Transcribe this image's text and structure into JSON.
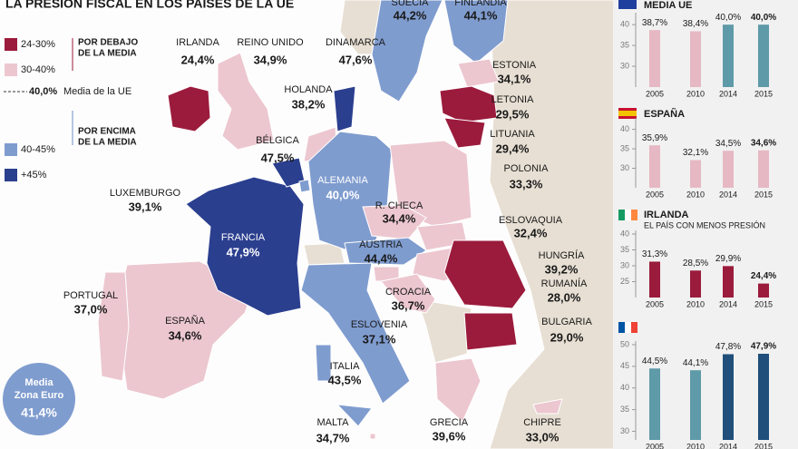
{
  "title": "LA PRESIÓN FISCAL EN LOS PAÍSES DE LA UE",
  "legend": {
    "items": [
      {
        "range": "24-30%",
        "color": "#9b1b3c"
      },
      {
        "range": "30-40%",
        "color": "#ecc7d0"
      },
      {
        "range": "40-45%",
        "color": "#7f9ccf"
      },
      {
        "range": "+45%",
        "color": "#2b3f8f"
      }
    ],
    "below": [
      "POR DEBAJO",
      "DE LA MEDIA"
    ],
    "above": [
      "POR ENCIMA",
      "DE LA MEDIA"
    ],
    "eu_mean_value": "40,0%",
    "eu_mean_text": "Media de la UE"
  },
  "countries": [
    {
      "name": "IRLANDA",
      "value": "24,4%"
    },
    {
      "name": "REINO UNIDO",
      "value": "34,9%"
    },
    {
      "name": "DINAMARCA",
      "value": "47,6%"
    },
    {
      "name": "SUECIA",
      "value": "44,2%"
    },
    {
      "name": "FINLANDIA",
      "value": "44,1%"
    },
    {
      "name": "ESTONIA",
      "value": "34,1%"
    },
    {
      "name": "LETONIA",
      "value": "29,5%"
    },
    {
      "name": "LITUANIA",
      "value": "29,4%"
    },
    {
      "name": "POLONIA",
      "value": "33,3%"
    },
    {
      "name": "HOLANDA",
      "value": "38,2%"
    },
    {
      "name": "BÉLGICA",
      "value": "47,5%"
    },
    {
      "name": "ALEMANIA",
      "value": "40,0%"
    },
    {
      "name": "LUXEMBURGO",
      "value": "39,1%"
    },
    {
      "name": "R. CHECA",
      "value": "34,4%"
    },
    {
      "name": "ESLOVAQUIA",
      "value": "32,4%"
    },
    {
      "name": "AUSTRIA",
      "value": "44,4%"
    },
    {
      "name": "FRANCIA",
      "value": "47,9%"
    },
    {
      "name": "HUNGRÍA",
      "value": "39,2%"
    },
    {
      "name": "RUMANÍA",
      "value": "28,0%"
    },
    {
      "name": "BULGARIA",
      "value": "29,0%"
    },
    {
      "name": "CROACIA",
      "value": "36,7%"
    },
    {
      "name": "ESLOVENIA",
      "value": "37,1%"
    },
    {
      "name": "PORTUGAL",
      "value": "37,0%"
    },
    {
      "name": "ESPAÑA",
      "value": "34,6%"
    },
    {
      "name": "ITALIA",
      "value": "43,5%"
    },
    {
      "name": "MALTA",
      "value": "34,7%"
    },
    {
      "name": "GRECIA",
      "value": "39,6%"
    },
    {
      "name": "CHIPRE",
      "value": "33,0%"
    }
  ],
  "eurozone": {
    "label": [
      "Media",
      "Zona Euro"
    ],
    "value": "41,4%"
  },
  "chart_data": [
    {
      "type": "bar",
      "title": "MEDIA UE",
      "categories": [
        "2005",
        "2010",
        "2014",
        "2015"
      ],
      "values": [
        38.7,
        38.4,
        40.0,
        40.0
      ],
      "value_labels": [
        "38,7%",
        "38,4%",
        "40,0%",
        "40,0%"
      ],
      "colors": [
        "#e6b8c3",
        "#e6b8c3",
        "#5f9aa8",
        "#5f9aa8"
      ],
      "ylim": [
        25,
        42
      ],
      "yticks": [
        30,
        35,
        40
      ]
    },
    {
      "type": "bar",
      "title": "ESPAÑA",
      "categories": [
        "2005",
        "2010",
        "2014",
        "2015"
      ],
      "values": [
        35.9,
        32.1,
        34.5,
        34.6
      ],
      "value_labels": [
        "35,9%",
        "32,1%",
        "34,5%",
        "34,6%"
      ],
      "colors": [
        "#e6b8c3",
        "#e6b8c3",
        "#e6b8c3",
        "#e6b8c3"
      ],
      "ylim": [
        25,
        42
      ],
      "yticks": [
        30,
        35,
        40
      ]
    },
    {
      "type": "bar",
      "title": "IRLANDA",
      "subtitle": "EL PAÍS CON MENOS PRESIÓN",
      "categories": [
        "2005",
        "2010",
        "2014",
        "2015"
      ],
      "values": [
        31.3,
        28.5,
        29.9,
        24.4
      ],
      "value_labels": [
        "31,3%",
        "28,5%",
        "29,9%",
        "24,4%"
      ],
      "colors": [
        "#9b1b3c",
        "#9b1b3c",
        "#9b1b3c",
        "#9b1b3c"
      ],
      "ylim": [
        20,
        40
      ],
      "yticks": [
        25,
        30,
        35,
        40
      ]
    },
    {
      "type": "bar",
      "categories": [
        "2005",
        "2010",
        "2014",
        "2015"
      ],
      "values": [
        44.5,
        44.1,
        47.8,
        47.9
      ],
      "value_labels": [
        "44,5%",
        "44,1%",
        "47,8%",
        "47,9%"
      ],
      "colors": [
        "#5f9aa8",
        "#5f9aa8",
        "#1f4f7a",
        "#1f4f7a"
      ],
      "ylim": [
        28,
        50
      ],
      "yticks": [
        30,
        35,
        40,
        45,
        50
      ]
    }
  ]
}
